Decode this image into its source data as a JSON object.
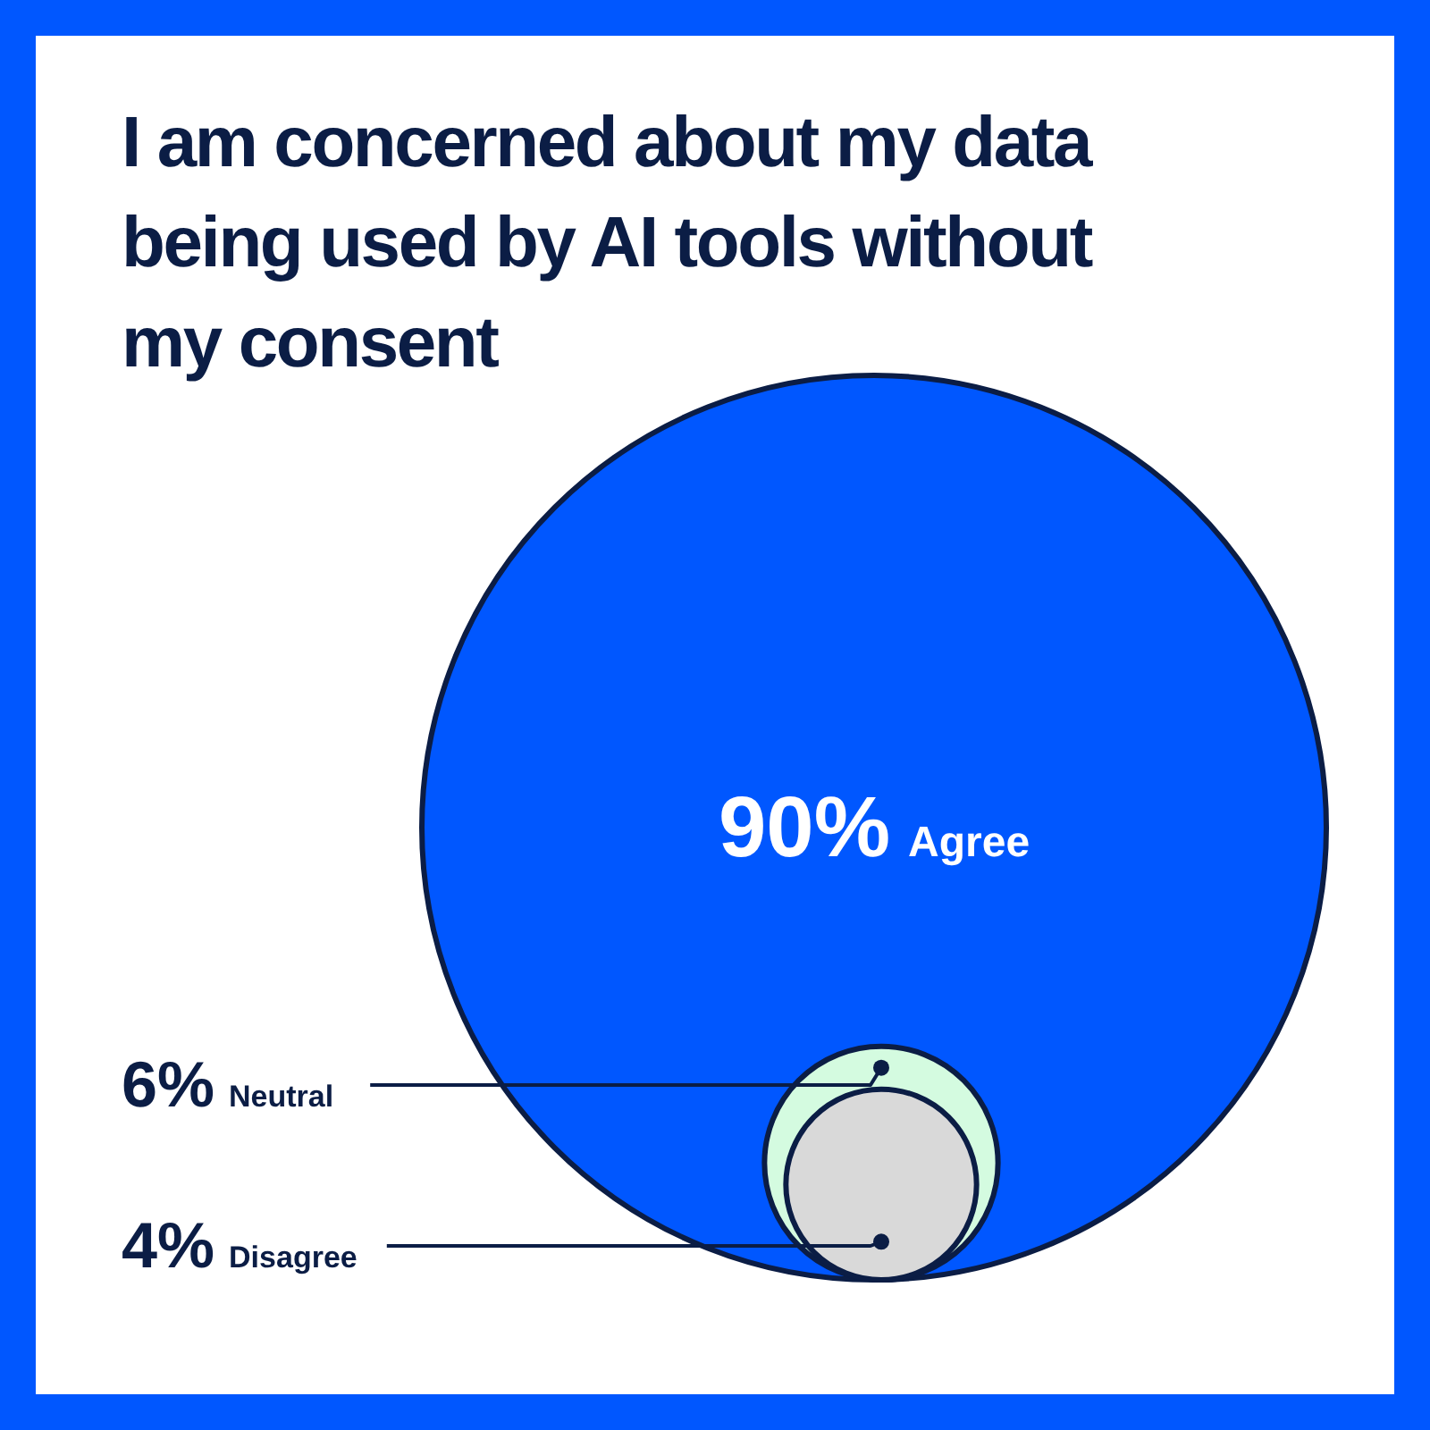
{
  "chart_data": {
    "type": "other",
    "title": "I am concerned about my data being used by AI tools without my consent",
    "categories": [
      "Agree",
      "Neutral",
      "Disagree"
    ],
    "values": [
      90,
      6,
      4
    ],
    "value_labels": [
      "90%",
      "6%",
      "4%"
    ],
    "colors": [
      "#0057ff",
      "#d4fbe0",
      "#d9d9d9"
    ]
  }
}
